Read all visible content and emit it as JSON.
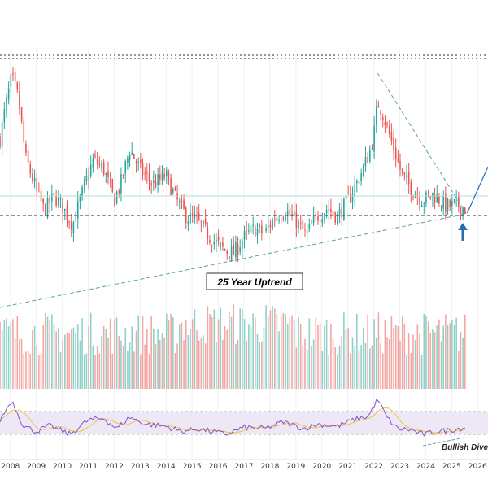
{
  "colors": {
    "up": "#26a69a",
    "down": "#ef5350",
    "up_volume": "#8fd1c8",
    "down_volume": "#f3a7a4",
    "rsi_line": "#7e57c2",
    "rsi_ma": "#f5c242",
    "rsi_band": "#ede7f6",
    "trendline": "#5f9ea0",
    "arrow": "#2b6cb0",
    "dotted": "#555555",
    "baseline": "#b2dfdb"
  },
  "annotations": {
    "uptrend_label": "25 Year Uptrend",
    "divergence_label": "Bullish Dive"
  },
  "x_axis": {
    "ticks": [
      "2008",
      "2009",
      "2010",
      "2011",
      "2012",
      "2013",
      "2014",
      "2015",
      "2016",
      "2017",
      "2018",
      "2019",
      "2020",
      "2021",
      "2022",
      "2023",
      "2024",
      "2025",
      "2026"
    ]
  },
  "icons": {
    "up_arrow": "arrow-up-icon"
  },
  "chart_data": [
    {
      "type": "candlestick",
      "x_range": [
        2007.6,
        2026.4
      ],
      "y_range": [
        0,
        100
      ],
      "price_anchors": [
        [
          2007.6,
          60
        ],
        [
          2007.8,
          75
        ],
        [
          2008.05,
          90
        ],
        [
          2008.3,
          80
        ],
        [
          2008.6,
          50
        ],
        [
          2009.0,
          35
        ],
        [
          2009.3,
          25
        ],
        [
          2009.7,
          32
        ],
        [
          2010.0,
          27
        ],
        [
          2010.4,
          18
        ],
        [
          2010.8,
          35
        ],
        [
          2011.2,
          50
        ],
        [
          2011.6,
          45
        ],
        [
          2012.0,
          30
        ],
        [
          2012.3,
          40
        ],
        [
          2012.6,
          55
        ],
        [
          2013.0,
          45
        ],
        [
          2013.5,
          38
        ],
        [
          2014.0,
          42
        ],
        [
          2014.4,
          30
        ],
        [
          2014.8,
          22
        ],
        [
          2015.2,
          20
        ],
        [
          2015.7,
          12
        ],
        [
          2016.2,
          6
        ],
        [
          2016.6,
          4
        ],
        [
          2017.0,
          12
        ],
        [
          2017.4,
          16
        ],
        [
          2017.8,
          14
        ],
        [
          2018.2,
          22
        ],
        [
          2018.6,
          25
        ],
        [
          2019.0,
          20
        ],
        [
          2019.4,
          13
        ],
        [
          2019.8,
          22
        ],
        [
          2020.2,
          26
        ],
        [
          2020.6,
          22
        ],
        [
          2021.0,
          30
        ],
        [
          2021.4,
          40
        ],
        [
          2021.8,
          52
        ],
        [
          2022.0,
          62
        ],
        [
          2022.15,
          78
        ],
        [
          2022.35,
          72
        ],
        [
          2022.7,
          58
        ],
        [
          2023.1,
          42
        ],
        [
          2023.5,
          35
        ],
        [
          2023.9,
          30
        ],
        [
          2024.3,
          33
        ],
        [
          2024.8,
          27
        ],
        [
          2025.2,
          28
        ],
        [
          2025.5,
          26
        ]
      ]
    },
    {
      "type": "bar",
      "name_role": "volume",
      "x_range": [
        2007.6,
        2026.4
      ],
      "y_range": [
        0,
        100
      ]
    },
    {
      "type": "line",
      "name_role": "rsi",
      "x_range": [
        2007.6,
        2026.4
      ],
      "y_range": [
        0,
        100
      ],
      "bands": [
        30,
        70
      ],
      "anchors": [
        [
          2007.6,
          55
        ],
        [
          2008.05,
          90
        ],
        [
          2008.5,
          45
        ],
        [
          2009.0,
          35
        ],
        [
          2009.5,
          45
        ],
        [
          2010.3,
          30
        ],
        [
          2011.0,
          55
        ],
        [
          2011.6,
          58
        ],
        [
          2012.1,
          40
        ],
        [
          2012.6,
          60
        ],
        [
          2013.2,
          48
        ],
        [
          2014.0,
          44
        ],
        [
          2014.6,
          35
        ],
        [
          2015.2,
          40
        ],
        [
          2016.3,
          30
        ],
        [
          2017.0,
          42
        ],
        [
          2017.8,
          40
        ],
        [
          2018.5,
          52
        ],
        [
          2019.3,
          40
        ],
        [
          2019.9,
          48
        ],
        [
          2020.6,
          44
        ],
        [
          2021.2,
          55
        ],
        [
          2021.8,
          62
        ],
        [
          2022.15,
          92
        ],
        [
          2022.5,
          60
        ],
        [
          2022.9,
          40
        ],
        [
          2023.4,
          38
        ],
        [
          2023.9,
          30
        ],
        [
          2024.5,
          35
        ],
        [
          2025.0,
          38
        ],
        [
          2025.5,
          42
        ]
      ]
    }
  ]
}
